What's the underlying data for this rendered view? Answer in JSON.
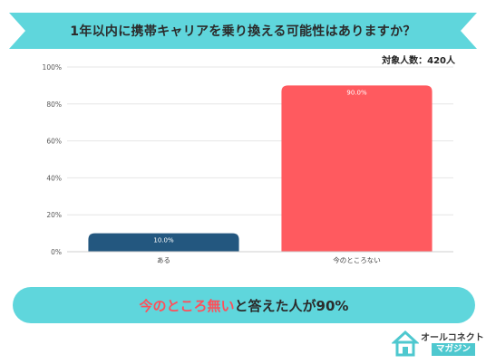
{
  "title": "1年以内に携帯キャリアを乗り換える可能性はありますか？",
  "respondents": "対象人数：420人",
  "summary": {
    "highlight": "今のところ無い",
    "rest": "と答えた人が90%"
  },
  "logo": {
    "line1": "オールコネクト",
    "line2": "マガジン"
  },
  "colors": {
    "banner": "#5fd6dc",
    "bar_1": "#23577f",
    "bar_2": "#ff5a5f",
    "highlight": "#ff4f5a"
  },
  "chart_data": {
    "type": "bar",
    "categories": [
      "ある",
      "今のところない"
    ],
    "values": [
      10.0,
      90.0
    ],
    "data_labels": [
      "10.0%",
      "90.0%"
    ],
    "ylim": [
      0,
      100
    ],
    "yticks": [
      "0%",
      "20%",
      "40%",
      "60%",
      "80%",
      "100%"
    ],
    "ytick_values": [
      0,
      20,
      40,
      60,
      80,
      100
    ],
    "grid": true,
    "bar_colors": [
      "#23577f",
      "#ff5a5f"
    ]
  }
}
